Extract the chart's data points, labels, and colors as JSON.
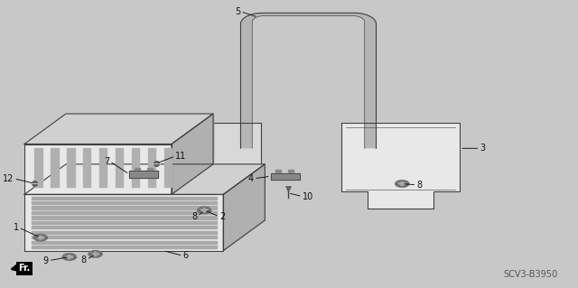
{
  "bg_color": "#c8c8c8",
  "diagram_code": "SCV3-B3950",
  "label_fontsize": 7,
  "code_fontsize": 7,
  "lc": "#404040",
  "fill_light": "#e8e8e8",
  "fill_mid": "#d0d0d0",
  "fill_dark": "#b0b0b0",
  "fill_slot": "#909090",
  "fill_clip": "#888888"
}
